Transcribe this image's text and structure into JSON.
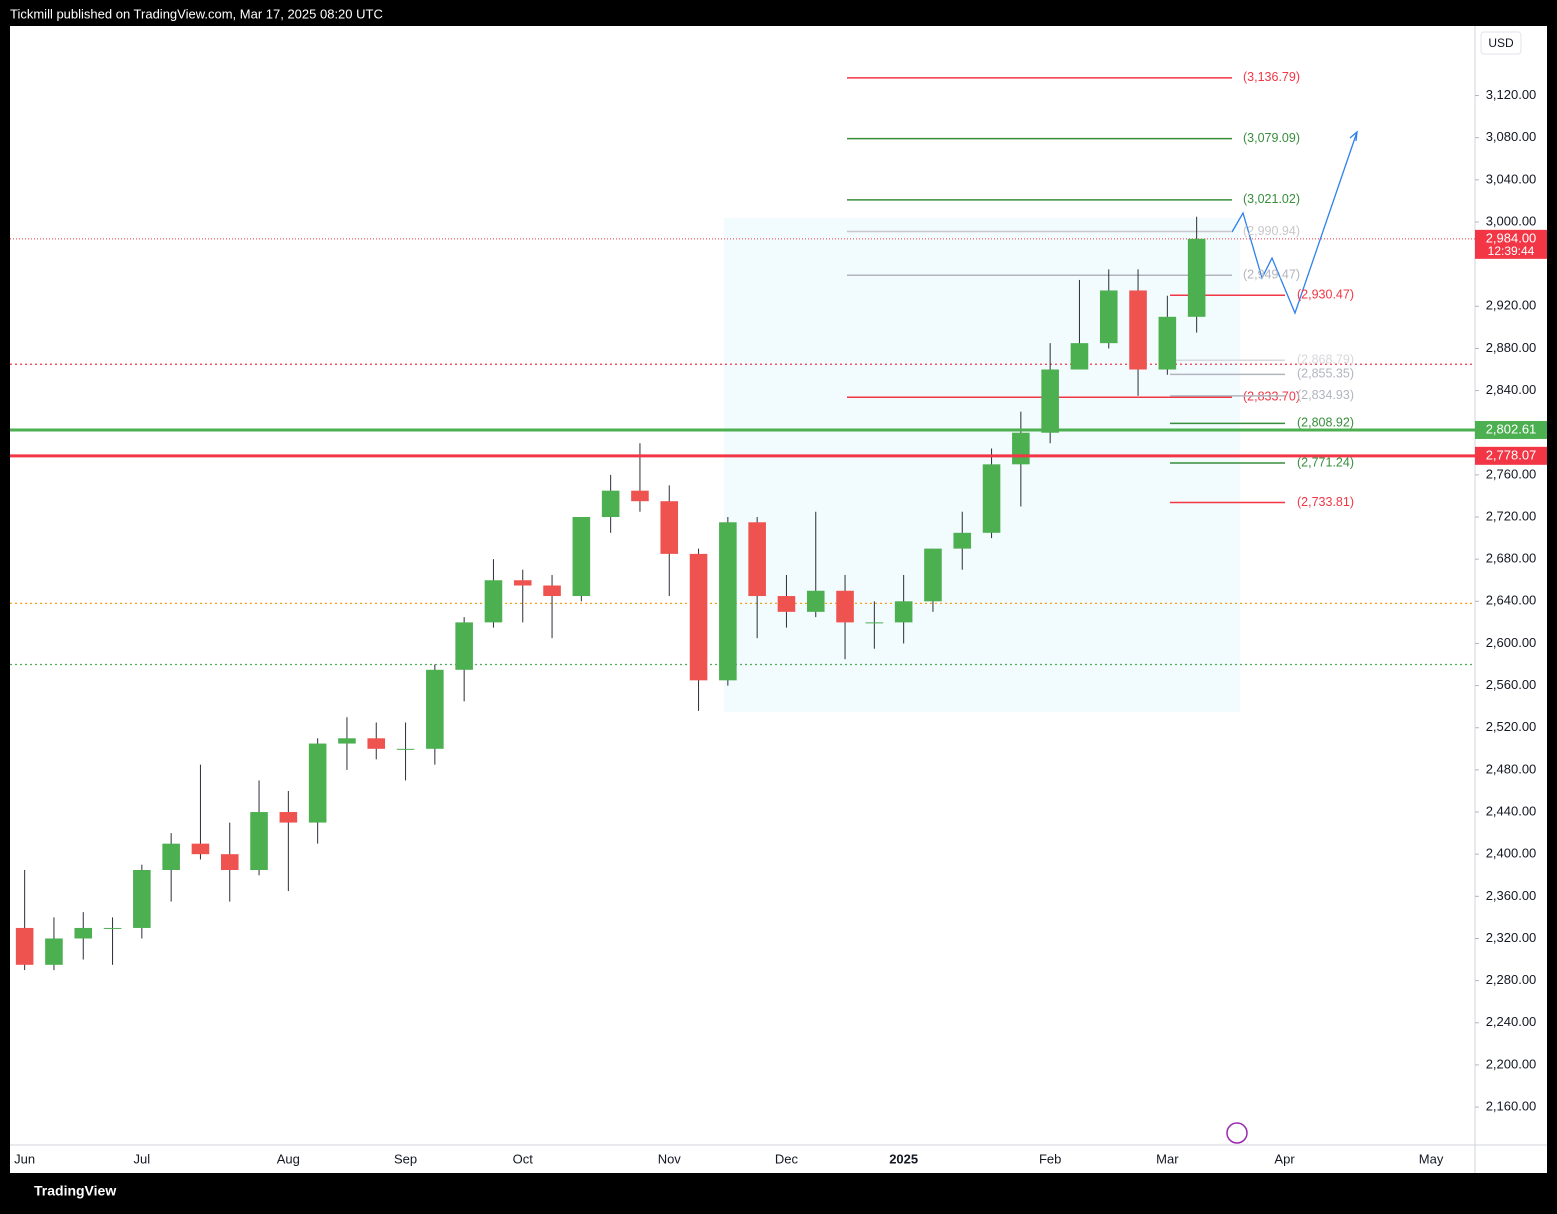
{
  "header": {
    "publisher": "Tickmill published on TradingView.com, Mar 17, 2025 08:20 UTC"
  },
  "footer": {
    "brand": "TradingView"
  },
  "chart_data": {
    "type": "candlestick",
    "currency": "USD",
    "categories": [
      "Jun",
      null,
      null,
      null,
      "Jul",
      null,
      null,
      null,
      null,
      "Aug",
      null,
      null,
      null,
      "Sep",
      null,
      null,
      null,
      "Oct",
      null,
      null,
      null,
      null,
      "Nov",
      null,
      null,
      null,
      "Dec",
      null,
      null,
      null,
      "2025",
      null,
      null,
      null,
      null,
      "Feb",
      null,
      null,
      null,
      "Mar",
      null,
      null,
      null,
      "Apr",
      null,
      null,
      null,
      null,
      "May",
      null
    ],
    "open": [
      2330,
      2295,
      2320,
      2330,
      2330,
      2385,
      2410,
      2400,
      2385,
      2440,
      2430,
      2505,
      2510,
      2500,
      2500,
      2575,
      2620,
      2660,
      2655,
      2645,
      2720,
      2745,
      2735,
      2685,
      2565,
      2715,
      2645,
      2630,
      2650,
      2620,
      2620,
      2640,
      2690,
      2705,
      2770,
      2800,
      2860,
      2885,
      2935,
      2860,
      2910,
      null,
      null,
      null,
      null,
      null,
      null,
      null,
      null,
      null
    ],
    "high": [
      2385,
      2340,
      2345,
      2340,
      2390,
      2420,
      2485,
      2430,
      2470,
      2460,
      2510,
      2530,
      2525,
      2525,
      2580,
      2625,
      2680,
      2670,
      2665,
      2720,
      2760,
      2790,
      2750,
      2690,
      2720,
      2720,
      2665,
      2725,
      2665,
      2640,
      2665,
      2690,
      2725,
      2785,
      2820,
      2885,
      2945,
      2955,
      2955,
      2930,
      3005,
      null,
      null,
      null,
      null,
      null,
      null,
      null,
      null,
      null
    ],
    "low": [
      2290,
      2290,
      2300,
      2295,
      2320,
      2355,
      2395,
      2355,
      2380,
      2365,
      2410,
      2480,
      2490,
      2470,
      2485,
      2545,
      2615,
      2620,
      2605,
      2640,
      2705,
      2725,
      2645,
      2536,
      2560,
      2605,
      2615,
      2625,
      2585,
      2595,
      2600,
      2630,
      2670,
      2700,
      2730,
      2790,
      2860,
      2880,
      2835,
      2855,
      2895,
      null,
      null,
      null,
      null,
      null,
      null,
      null,
      null,
      null
    ],
    "close": [
      2295,
      2320,
      2330,
      2330,
      2385,
      2410,
      2400,
      2385,
      2440,
      2430,
      2505,
      2510,
      2500,
      2500,
      2575,
      2620,
      2660,
      2655,
      2645,
      2720,
      2745,
      2735,
      2685,
      2565,
      2715,
      2645,
      2630,
      2650,
      2620,
      2620,
      2640,
      2690,
      2705,
      2770,
      2800,
      2860,
      2885,
      2935,
      2860,
      2910,
      2984,
      null,
      null,
      null,
      null,
      null,
      null,
      null,
      null,
      null
    ],
    "up_color": "#4caf50",
    "down_color": "#ef5350",
    "ylim": [
      2124,
      3186
    ],
    "yticks": [
      {
        "value": 2160,
        "label": "2,160.00"
      },
      {
        "value": 2200,
        "label": "2,200.00"
      },
      {
        "value": 2240,
        "label": "2,240.00"
      },
      {
        "value": 2280,
        "label": "2,280.00"
      },
      {
        "value": 2320,
        "label": "2,320.00"
      },
      {
        "value": 2360,
        "label": "2,360.00"
      },
      {
        "value": 2400,
        "label": "2,400.00"
      },
      {
        "value": 2440,
        "label": "2,440.00"
      },
      {
        "value": 2480,
        "label": "2,480.00"
      },
      {
        "value": 2520,
        "label": "2,520.00"
      },
      {
        "value": 2560,
        "label": "2,560.00"
      },
      {
        "value": 2600,
        "label": "2,600.00"
      },
      {
        "value": 2640,
        "label": "2,640.00"
      },
      {
        "value": 2680,
        "label": "2,680.00"
      },
      {
        "value": 2720,
        "label": "2,720.00"
      },
      {
        "value": 2760,
        "label": "2,760.00"
      },
      {
        "value": 2840,
        "label": "2,840.00"
      },
      {
        "value": 2880,
        "label": "2,880.00"
      },
      {
        "value": 2920,
        "label": "2,920.00"
      },
      {
        "value": 3000,
        "label": "3,000.00"
      },
      {
        "value": 3040,
        "label": "3,040.00"
      },
      {
        "value": 3080,
        "label": "3,080.00"
      },
      {
        "value": 3120,
        "label": "3,120.00"
      }
    ],
    "levels": [
      {
        "value": 3136.79,
        "label": "(3,136.79)",
        "color": "#f23645"
      },
      {
        "value": 3079.09,
        "label": "(3,079.09)",
        "color": "#388e3c"
      },
      {
        "value": 3021.02,
        "label": "(3,021.02)",
        "color": "#388e3c"
      },
      {
        "value": 2990.94,
        "label": "(2,990.94)",
        "color": "#c8c8cc"
      },
      {
        "value": 2949.47,
        "label": "(2,949.47)",
        "color": "#b2b5be"
      },
      {
        "value": 2833.7,
        "label": "(2,833.70)",
        "color": "#f23645"
      },
      {
        "value": 2930.47,
        "label": "(2,930.47)",
        "color": "#f23645"
      },
      {
        "value": 2868.79,
        "label": "(2,868.79)",
        "color": "#d8d8dc"
      },
      {
        "value": 2855.35,
        "label": "(2,855.35)",
        "color": "#b2b5be"
      },
      {
        "value": 2834.93,
        "label": "(2,834.93)",
        "color": "#b2b5be"
      },
      {
        "value": 2808.92,
        "label": "(2,808.92)",
        "color": "#388e3c"
      },
      {
        "value": 2771.24,
        "label": "(2,771.24)",
        "color": "#388e3c"
      },
      {
        "value": 2733.81,
        "label": "(2,733.81)",
        "color": "#f23645"
      }
    ],
    "key_levels": [
      {
        "value": 2802.61,
        "label": "2,802.61",
        "color": "#4caf50"
      },
      {
        "value": 2778.07,
        "label": "2,778.07",
        "color": "#f23645"
      }
    ],
    "dotted_levels": [
      {
        "value": 2865,
        "color": "#f23645"
      },
      {
        "value": 2638,
        "color": "#f7a21b"
      },
      {
        "value": 2580,
        "color": "#4caf50"
      }
    ],
    "last_price": {
      "value": 2984,
      "label": "2,984.00",
      "color": "#f23645"
    },
    "countdown": "12:39:44"
  }
}
